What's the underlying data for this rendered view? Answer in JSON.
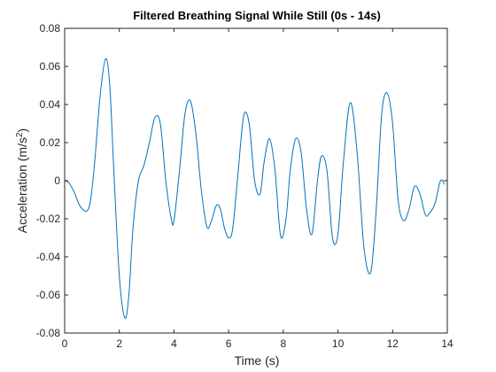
{
  "chart_data": {
    "type": "line",
    "title": "Filtered Breathing Signal While Still (0s - 14s)",
    "xlabel": "Time (s)",
    "ylabel_base": "Acceleration (m/s",
    "ylabel_sup": "2",
    "ylabel_close": ")",
    "xlim": [
      0,
      14
    ],
    "ylim": [
      -0.08,
      0.08
    ],
    "x_ticks": [
      0,
      2,
      4,
      6,
      8,
      10,
      12,
      14
    ],
    "y_ticks": [
      -0.08,
      -0.06,
      -0.04,
      -0.02,
      0,
      0.02,
      0.04,
      0.06,
      0.08
    ],
    "x_tick_labels": [
      "0",
      "2",
      "4",
      "6",
      "8",
      "10",
      "12",
      "14"
    ],
    "y_tick_labels": [
      "-0.08",
      "-0.06",
      "-0.04",
      "-0.02",
      "0",
      "0.02",
      "0.04",
      "0.06",
      "0.08"
    ],
    "grid": false,
    "line_color": "#0072BD",
    "series": [
      {
        "x": [
          0,
          0.15,
          0.35,
          0.55,
          0.8,
          0.95,
          1.1,
          1.3,
          1.5,
          1.65,
          1.8,
          2.0,
          2.2,
          2.35,
          2.5,
          2.7,
          2.9,
          3.1,
          3.3,
          3.5,
          3.7,
          3.9,
          4.0,
          4.2,
          4.4,
          4.6,
          4.8,
          5.0,
          5.2,
          5.35,
          5.55,
          5.7,
          5.85,
          6.0,
          6.15,
          6.35,
          6.55,
          6.75,
          6.95,
          7.15,
          7.3,
          7.5,
          7.7,
          7.9,
          8.1,
          8.25,
          8.45,
          8.65,
          8.85,
          9.05,
          9.25,
          9.4,
          9.6,
          9.8,
          10.0,
          10.2,
          10.45,
          10.7,
          10.95,
          11.2,
          11.4,
          11.6,
          11.8,
          12.0,
          12.2,
          12.4,
          12.6,
          12.8,
          13.0,
          13.2,
          13.35,
          13.55,
          13.75,
          13.9
        ],
        "y": [
          0.0,
          -0.001,
          -0.006,
          -0.013,
          -0.016,
          -0.01,
          0.01,
          0.045,
          0.064,
          0.05,
          0.005,
          -0.05,
          -0.072,
          -0.06,
          -0.025,
          0.0,
          0.008,
          0.02,
          0.033,
          0.03,
          0.0,
          -0.02,
          -0.021,
          0.005,
          0.035,
          0.042,
          0.025,
          -0.005,
          -0.024,
          -0.022,
          -0.013,
          -0.015,
          -0.025,
          -0.03,
          -0.025,
          0.005,
          0.034,
          0.03,
          0.0,
          -0.007,
          0.01,
          0.022,
          0.005,
          -0.029,
          -0.02,
          0.005,
          0.022,
          0.015,
          -0.015,
          -0.028,
          0.0,
          0.013,
          0.005,
          -0.03,
          -0.028,
          0.01,
          0.041,
          0.015,
          -0.035,
          -0.048,
          -0.015,
          0.035,
          0.046,
          0.03,
          -0.01,
          -0.021,
          -0.015,
          -0.003,
          -0.007,
          -0.018,
          -0.017,
          -0.012,
          0.0,
          -0.002
        ]
      }
    ]
  }
}
